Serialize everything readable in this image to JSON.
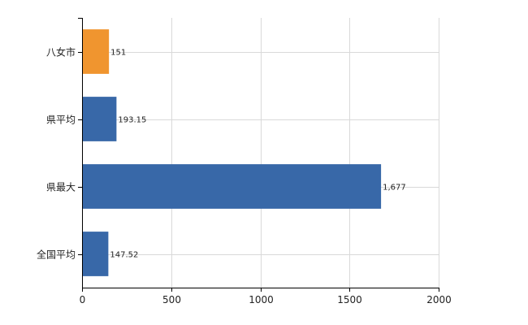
{
  "chart_data": {
    "type": "bar",
    "orientation": "horizontal",
    "categories": [
      "八女市",
      "県平均",
      "県最大",
      "全国平均"
    ],
    "values": [
      151,
      193.15,
      1677,
      147.52
    ],
    "data_labels": [
      "151",
      "193.15",
      "1,677",
      "147.52"
    ],
    "bar_colors": [
      "#F0952F",
      "#3868A8",
      "#3868A8",
      "#3868A8"
    ],
    "xlim": [
      0,
      2000
    ],
    "xticks": [
      0,
      500,
      1000,
      1500,
      2000
    ],
    "xtick_labels": [
      "0",
      "500",
      "1000",
      "1500",
      "2000"
    ],
    "grid": true,
    "legend": "none",
    "title": "",
    "xlabel": "",
    "ylabel": ""
  }
}
